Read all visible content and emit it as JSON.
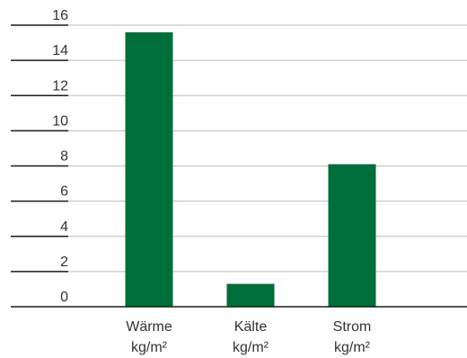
{
  "chart_data": {
    "type": "bar",
    "categories": [
      "Wärme",
      "Kälte",
      "Strom"
    ],
    "category_units": [
      "kg/m²",
      "kg/m²",
      "kg/m²"
    ],
    "values": [
      15.6,
      1.3,
      8.1
    ],
    "ylim": [
      0,
      16
    ],
    "yticks": [
      "0",
      "2",
      "4",
      "6",
      "8",
      "10",
      "12",
      "14",
      "16"
    ],
    "grid": true,
    "bar_color": "#006e3a",
    "title": "",
    "xlabel": "",
    "ylabel": ""
  }
}
